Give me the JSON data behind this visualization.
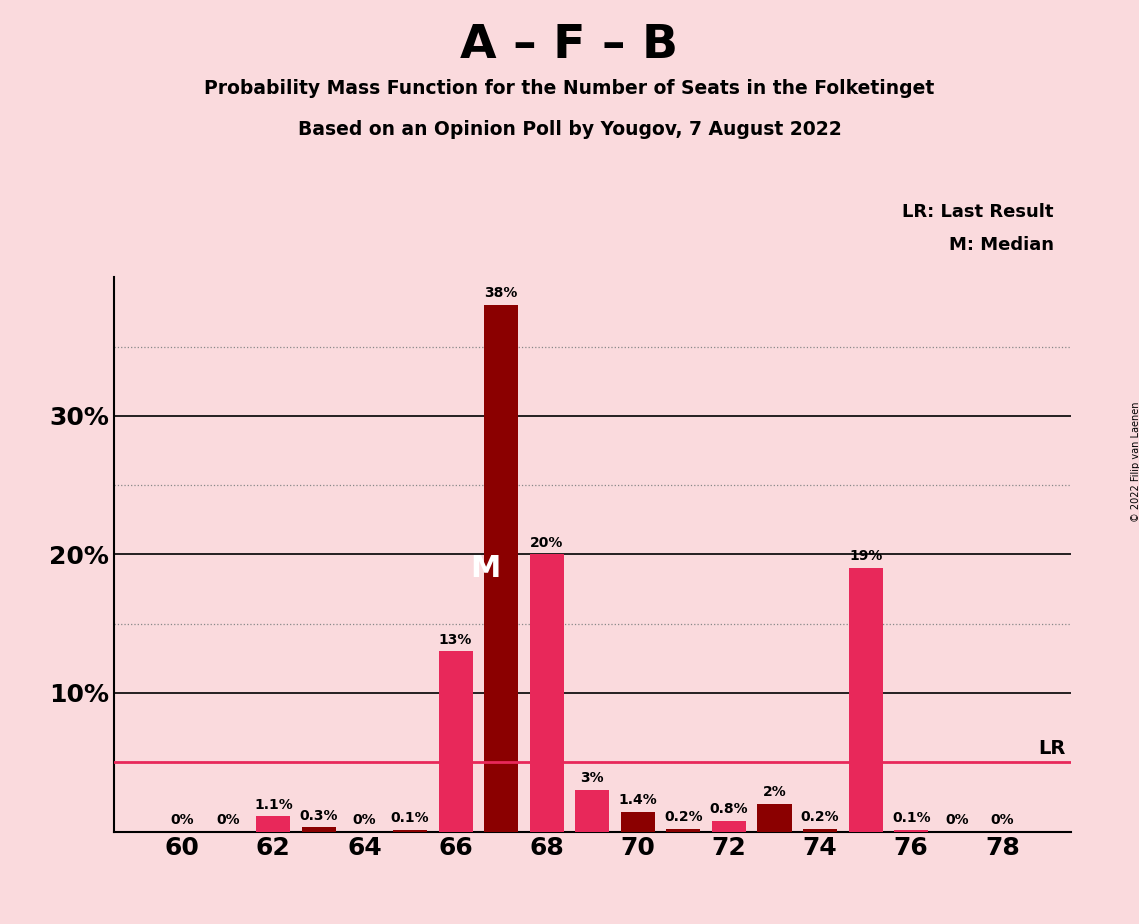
{
  "title1": "A – F – B",
  "title2": "Probability Mass Function for the Number of Seats in the Folketinget",
  "title3": "Based on an Opinion Poll by Yougov, 7 August 2022",
  "copyright": "© 2022 Filip van Laenen",
  "legend1": "LR: Last Result",
  "legend2": "M: Median",
  "lr_label": "LR",
  "median_label": "M",
  "background_color": "#FADADD",
  "seats": [
    60,
    61,
    62,
    63,
    64,
    65,
    66,
    67,
    68,
    69,
    70,
    71,
    72,
    73,
    74,
    75,
    76,
    77,
    78
  ],
  "values": [
    0.0,
    0.0,
    1.1,
    0.3,
    0.0,
    0.1,
    13.0,
    38.0,
    20.0,
    3.0,
    1.4,
    0.2,
    0.8,
    2.0,
    0.2,
    19.0,
    0.1,
    0.0,
    0.0
  ],
  "bar_colors": [
    "#E8285A",
    "#E8285A",
    "#E8285A",
    "#8B0000",
    "#E8285A",
    "#8B0000",
    "#E8285A",
    "#8B0000",
    "#E8285A",
    "#E8285A",
    "#8B0000",
    "#8B0000",
    "#E8285A",
    "#8B0000",
    "#8B0000",
    "#E8285A",
    "#E8285A",
    "#E8285A",
    "#E8285A"
  ],
  "median_seat": 67,
  "lr_seat": 75,
  "lr_line_value": 5.0,
  "pink_color": "#E8285A",
  "dark_red_color": "#8B0000",
  "yticks": [
    0,
    10,
    20,
    30
  ],
  "dotted_yticks": [
    5,
    15,
    25,
    35
  ],
  "xlim": [
    58.5,
    79.5
  ],
  "ylim": [
    0,
    40
  ],
  "bar_width": 0.75
}
